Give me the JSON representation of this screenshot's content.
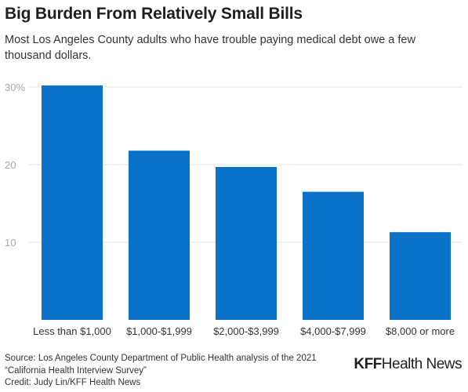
{
  "header": {
    "title": "Big Burden From Relatively Small Bills",
    "subtitle": "Most Los Angeles County adults who have trouble paying medical debt owe a few thousand dollars."
  },
  "chart_data": {
    "type": "bar",
    "categories": [
      "Less than $1,000",
      "$1,000-$1,999",
      "$2,000-$3,999",
      "$4,000-$7,999",
      "$8,000 or more"
    ],
    "values": [
      30.2,
      21.8,
      19.7,
      16.5,
      11.3
    ],
    "ylim": [
      0,
      30
    ],
    "yticks": [
      10,
      20,
      30
    ],
    "ytick_labels": [
      "10",
      "20",
      "30%"
    ],
    "bar_color": "#0a72c9",
    "grid": true
  },
  "footer": {
    "source": "Source: Los Angeles County Department of Public Health analysis of the 2021 “California Health Interview Survey”",
    "credit": "Credit: Judy Lin/KFF Health News"
  },
  "logo": {
    "brand": "KFF",
    "name": "Health News"
  }
}
